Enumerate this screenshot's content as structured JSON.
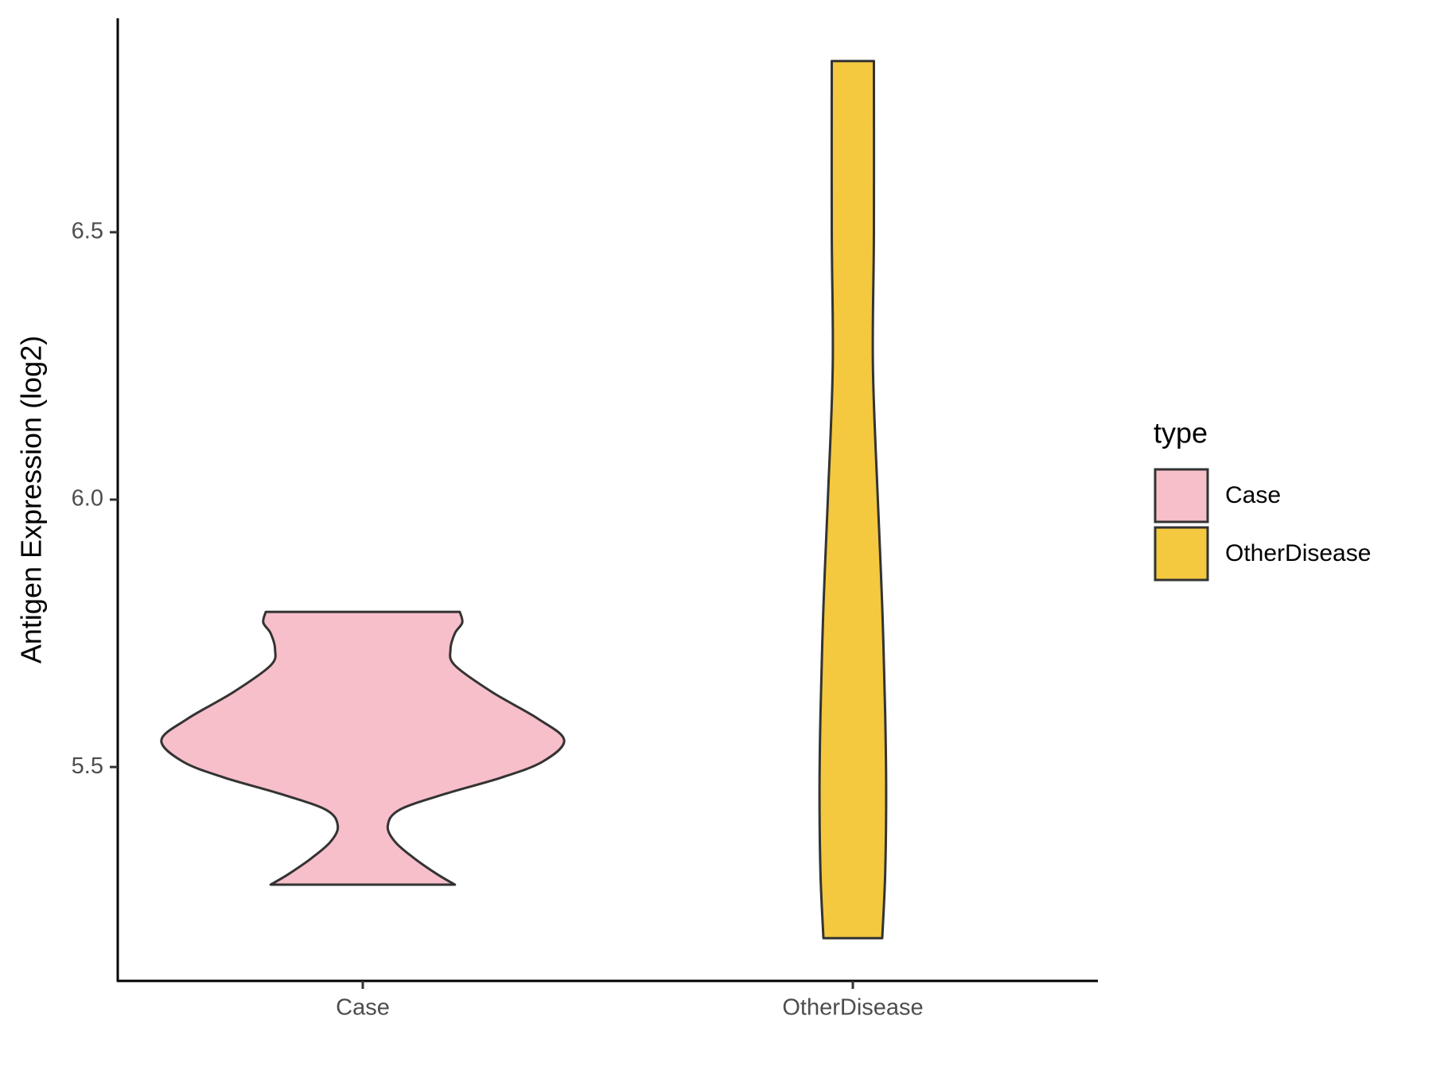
{
  "chart_data": {
    "type": "violin",
    "y_label": "Antigen Expression (log2)",
    "categories": [
      "Case",
      "OtherDisease"
    ],
    "ylim": [
      5.1,
      6.9
    ],
    "yticks": [
      5.5,
      {
        "value": 6,
        "label": "6.0"
      },
      6.5
    ],
    "legend_title": "type",
    "legend_position": "right",
    "grid": false,
    "series": [
      {
        "name": "Case",
        "color": "#f7bfca",
        "profile": {
          "y": [
            5.28,
            5.3,
            5.33,
            5.36,
            5.39,
            5.42,
            5.45,
            5.48,
            5.51,
            5.55,
            5.59,
            5.64,
            5.69,
            5.72,
            5.75,
            5.77,
            5.79
          ],
          "width": [
            0.188,
            0.151,
            0.104,
            0.066,
            0.051,
            0.075,
            0.169,
            0.282,
            0.367,
            0.411,
            0.358,
            0.264,
            0.188,
            0.179,
            0.188,
            0.203,
            0.198
          ]
        }
      },
      {
        "name": "OtherDisease",
        "color": "#f4c93f",
        "profile": {
          "y": [
            5.18,
            5.3,
            5.45,
            5.6,
            5.8,
            6.0,
            6.25,
            6.5,
            6.82
          ],
          "width": [
            0.06,
            0.066,
            0.068,
            0.066,
            0.06,
            0.051,
            0.041,
            0.043,
            0.043
          ]
        }
      }
    ]
  }
}
